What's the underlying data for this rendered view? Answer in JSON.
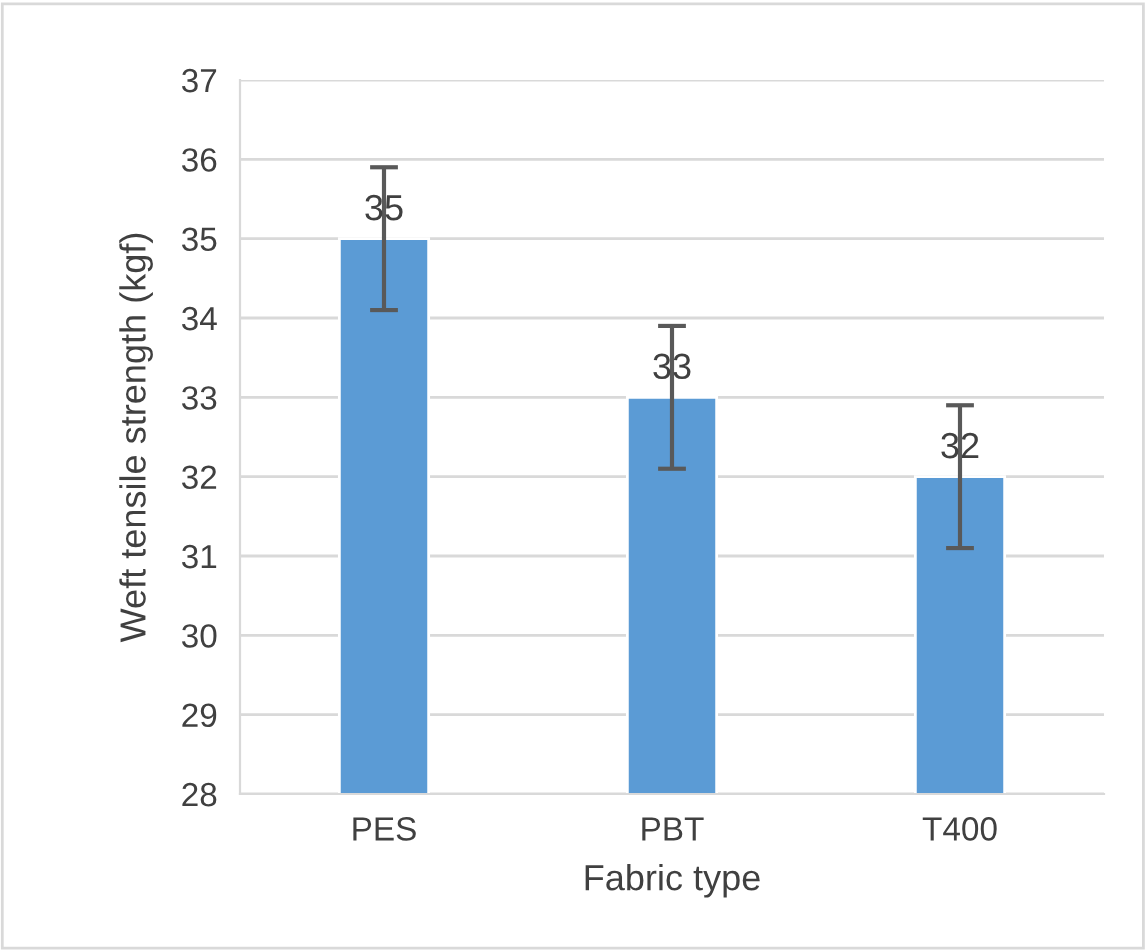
{
  "chart_data": {
    "type": "bar",
    "xlabel": "Fabric type",
    "ylabel": "Weft tensile strength (kgf)",
    "categories": [
      "PES",
      "PBT",
      "T400"
    ],
    "values": [
      35,
      33,
      32
    ],
    "errors": [
      0.9,
      0.9,
      0.9
    ],
    "color": "#5b9bd5",
    "data_labels": true,
    "ylim": [
      28,
      37
    ],
    "yticks": [
      28,
      29,
      30,
      31,
      32,
      33,
      34,
      35,
      36,
      37
    ],
    "grid": "y",
    "legend": false
  }
}
